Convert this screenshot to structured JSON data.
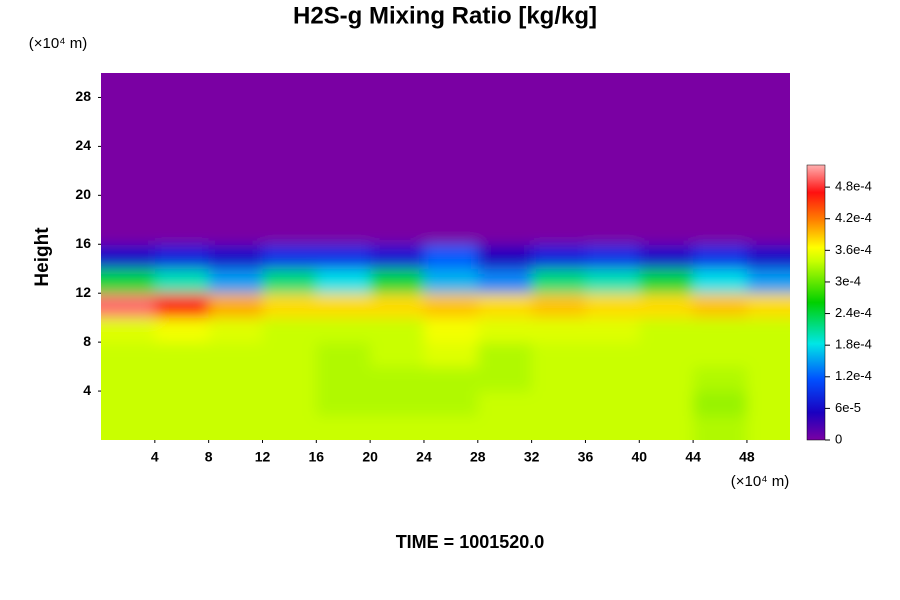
{
  "chart_data": {
    "type": "heatmap",
    "title": "H2S-g Mixing Ratio [kg/kg]",
    "y_label": "Height",
    "x_unit": "(×10⁴ m)",
    "y_unit": "(×10⁴ m)",
    "annotation": "TIME = 1001520.0",
    "xlim": [
      0,
      51.2
    ],
    "ylim": [
      0,
      30
    ],
    "xticks": [
      4,
      8,
      12,
      16,
      20,
      24,
      28,
      32,
      36,
      40,
      44,
      48
    ],
    "yticks": [
      4,
      8,
      12,
      16,
      20,
      24,
      28
    ],
    "x": [
      2,
      6,
      10,
      14,
      18,
      22,
      26,
      30,
      34,
      38,
      42,
      46,
      50
    ],
    "y": [
      1,
      3,
      5,
      7,
      9,
      11,
      13,
      15,
      17,
      19,
      21,
      23,
      25,
      27,
      29
    ],
    "z": [
      [
        0.00034,
        0.00034,
        0.00034,
        0.00034,
        0.00034,
        0.00034,
        0.00034,
        0.00034,
        0.00034,
        0.00034,
        0.00034,
        0.00033,
        0.00034
      ],
      [
        0.00034,
        0.00034,
        0.00034,
        0.00034,
        0.00033,
        0.00033,
        0.00033,
        0.00034,
        0.00034,
        0.00034,
        0.00034,
        0.00032,
        0.00034
      ],
      [
        0.00034,
        0.00034,
        0.00034,
        0.00034,
        0.00033,
        0.00033,
        0.00033,
        0.00033,
        0.00034,
        0.00034,
        0.00034,
        0.00033,
        0.00034
      ],
      [
        0.00034,
        0.00034,
        0.00034,
        0.00034,
        0.00033,
        0.00034,
        0.00035,
        0.00033,
        0.00034,
        0.00034,
        0.00034,
        0.00034,
        0.00034
      ],
      [
        0.00035,
        0.00036,
        0.00035,
        0.00034,
        0.00034,
        0.00034,
        0.00036,
        0.00035,
        0.00035,
        0.00035,
        0.00034,
        0.00034,
        0.00034
      ],
      [
        0.0005,
        0.00046,
        0.0004,
        0.00038,
        0.00038,
        0.00038,
        0.00039,
        0.00038,
        0.00039,
        0.00038,
        0.00038,
        0.00039,
        0.00038
      ],
      [
        0.00024,
        0.0002,
        0.00015,
        0.00022,
        0.00018,
        0.00024,
        0.00016,
        0.00014,
        0.00022,
        0.0002,
        0.00024,
        0.00018,
        0.00015
      ],
      [
        6e-05,
        8e-05,
        6e-05,
        9e-05,
        9e-05,
        7e-05,
        0.00012,
        5e-05,
        8e-05,
        9e-05,
        6e-05,
        9e-05,
        6e-05
      ],
      [
        0,
        0,
        0,
        0,
        0,
        0,
        0,
        0,
        0,
        0,
        0,
        0,
        0
      ],
      [
        0,
        0,
        0,
        0,
        0,
        0,
        0,
        0,
        0,
        0,
        0,
        0,
        0
      ],
      [
        0,
        0,
        0,
        0,
        0,
        0,
        0,
        0,
        0,
        0,
        0,
        0,
        0
      ],
      [
        0,
        0,
        0,
        0,
        0,
        0,
        0,
        0,
        0,
        0,
        0,
        0,
        0
      ],
      [
        0,
        0,
        0,
        0,
        0,
        0,
        0,
        0,
        0,
        0,
        0,
        0,
        0
      ],
      [
        0,
        0,
        0,
        0,
        0,
        0,
        0,
        0,
        0,
        0,
        0,
        0,
        0
      ],
      [
        0,
        0,
        0,
        0,
        0,
        0,
        0,
        0,
        0,
        0,
        0,
        0,
        0
      ]
    ],
    "clim": [
      0,
      0.000522
    ],
    "cticks": [
      0,
      {
        "value": 6e-05,
        "label": "6e-5"
      },
      {
        "value": 0.00012,
        "label": "1.2e-4"
      },
      {
        "value": 0.00018,
        "label": "1.8e-4"
      },
      {
        "value": 0.00024,
        "label": "2.4e-4"
      },
      {
        "value": 0.0003,
        "label": "3e-4"
      },
      {
        "value": 0.00036,
        "label": "3.6e-4"
      },
      {
        "value": 0.00042,
        "label": "4.2e-4"
      },
      {
        "value": 0.00048,
        "label": "4.8e-4"
      }
    ],
    "colorscale": [
      [
        0,
        "#7a00a3"
      ],
      [
        0.1,
        "#1a00c0"
      ],
      [
        0.22,
        "#0050ff"
      ],
      [
        0.35,
        "#00e6e6"
      ],
      [
        0.5,
        "#00d000"
      ],
      [
        0.65,
        "#c8ff00"
      ],
      [
        0.7,
        "#ffff00"
      ],
      [
        0.8,
        "#ff8000"
      ],
      [
        0.9,
        "#ff1010"
      ],
      [
        1,
        "#ffb0b0"
      ]
    ]
  }
}
